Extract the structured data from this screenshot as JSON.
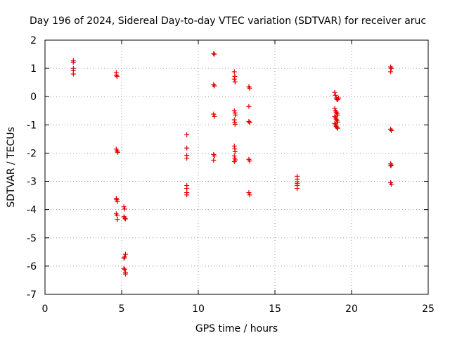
{
  "chart_data": {
    "type": "scatter",
    "title": "Day 196 of 2024, Sidereal Day-to-day VTEC variation (SDTVAR) for receiver aruc",
    "xlabel": "GPS time / hours",
    "ylabel": "SDTVAR / TECUs",
    "xlim": [
      0,
      25
    ],
    "ylim": [
      -7,
      2
    ],
    "xticks": [
      0,
      5,
      10,
      15,
      20,
      25
    ],
    "yticks": [
      -7,
      -6,
      -5,
      -4,
      -3,
      -2,
      -1,
      0,
      1,
      2
    ],
    "grid": true,
    "legend": "none",
    "marker_color": "#e00000",
    "series": [
      {
        "name": "SDTVAR",
        "points": [
          [
            1.85,
            1.28
          ],
          [
            1.85,
            1.22
          ],
          [
            1.85,
            1.0
          ],
          [
            1.85,
            0.92
          ],
          [
            1.85,
            0.8
          ],
          [
            4.65,
            0.85
          ],
          [
            4.65,
            0.76
          ],
          [
            4.7,
            0.72
          ],
          [
            4.65,
            -1.86
          ],
          [
            4.7,
            -1.92
          ],
          [
            4.75,
            -1.97
          ],
          [
            4.65,
            -3.6
          ],
          [
            4.68,
            -3.65
          ],
          [
            4.72,
            -3.72
          ],
          [
            4.65,
            -4.15
          ],
          [
            4.7,
            -4.2
          ],
          [
            4.72,
            -4.35
          ],
          [
            5.15,
            -3.9
          ],
          [
            5.2,
            -3.98
          ],
          [
            5.15,
            -4.25
          ],
          [
            5.2,
            -4.3
          ],
          [
            5.25,
            -4.33
          ],
          [
            5.25,
            -5.58
          ],
          [
            5.2,
            -5.68
          ],
          [
            5.15,
            -5.72
          ],
          [
            5.15,
            -6.08
          ],
          [
            5.2,
            -6.12
          ],
          [
            5.25,
            -6.22
          ],
          [
            5.25,
            -6.28
          ],
          [
            9.25,
            -1.35
          ],
          [
            9.25,
            -1.82
          ],
          [
            9.25,
            -2.08
          ],
          [
            9.25,
            -2.18
          ],
          [
            9.25,
            -3.15
          ],
          [
            9.25,
            -3.25
          ],
          [
            9.25,
            -3.4
          ],
          [
            9.25,
            -3.48
          ],
          [
            11.0,
            1.52
          ],
          [
            11.05,
            1.5
          ],
          [
            11.0,
            0.42
          ],
          [
            11.05,
            0.38
          ],
          [
            11.0,
            -0.62
          ],
          [
            11.05,
            -0.7
          ],
          [
            11.0,
            -2.05
          ],
          [
            11.05,
            -2.1
          ],
          [
            11.0,
            -2.25
          ],
          [
            12.35,
            0.88
          ],
          [
            12.38,
            0.72
          ],
          [
            12.35,
            0.62
          ],
          [
            12.4,
            0.52
          ],
          [
            12.35,
            -0.5
          ],
          [
            12.4,
            -0.58
          ],
          [
            12.42,
            -0.65
          ],
          [
            12.35,
            -0.82
          ],
          [
            12.38,
            -0.92
          ],
          [
            12.4,
            -0.98
          ],
          [
            12.35,
            -1.75
          ],
          [
            12.38,
            -1.85
          ],
          [
            12.4,
            -1.95
          ],
          [
            12.35,
            -2.1
          ],
          [
            12.38,
            -2.18
          ],
          [
            12.42,
            -2.24
          ],
          [
            12.35,
            -2.3
          ],
          [
            13.3,
            0.35
          ],
          [
            13.35,
            0.3
          ],
          [
            13.3,
            -0.35
          ],
          [
            13.3,
            -0.88
          ],
          [
            13.35,
            -0.92
          ],
          [
            13.3,
            -2.22
          ],
          [
            13.35,
            -2.28
          ],
          [
            13.3,
            -3.4
          ],
          [
            13.35,
            -3.48
          ],
          [
            16.45,
            -2.82
          ],
          [
            16.45,
            -2.92
          ],
          [
            16.45,
            -3.02
          ],
          [
            16.45,
            -3.08
          ],
          [
            16.45,
            -3.15
          ],
          [
            16.45,
            -3.25
          ],
          [
            18.9,
            0.15
          ],
          [
            18.95,
            0.05
          ],
          [
            19.0,
            -0.05
          ],
          [
            19.05,
            -0.1
          ],
          [
            19.1,
            -0.1
          ],
          [
            19.15,
            -0.05
          ],
          [
            18.9,
            -0.42
          ],
          [
            18.95,
            -0.5
          ],
          [
            19.0,
            -0.55
          ],
          [
            19.05,
            -0.6
          ],
          [
            19.1,
            -0.65
          ],
          [
            18.9,
            -0.7
          ],
          [
            18.95,
            -0.75
          ],
          [
            19.0,
            -0.8
          ],
          [
            19.05,
            -0.85
          ],
          [
            19.1,
            -0.9
          ],
          [
            18.9,
            -0.95
          ],
          [
            18.95,
            -1.0
          ],
          [
            19.0,
            -1.05
          ],
          [
            19.05,
            -1.1
          ],
          [
            19.1,
            -1.12
          ],
          [
            22.55,
            1.05
          ],
          [
            22.6,
            1.0
          ],
          [
            22.55,
            0.88
          ],
          [
            22.55,
            -1.15
          ],
          [
            22.6,
            -1.2
          ],
          [
            22.55,
            -2.38
          ],
          [
            22.6,
            -2.42
          ],
          [
            22.55,
            -2.45
          ],
          [
            22.55,
            -3.05
          ],
          [
            22.6,
            -3.1
          ]
        ]
      }
    ]
  }
}
